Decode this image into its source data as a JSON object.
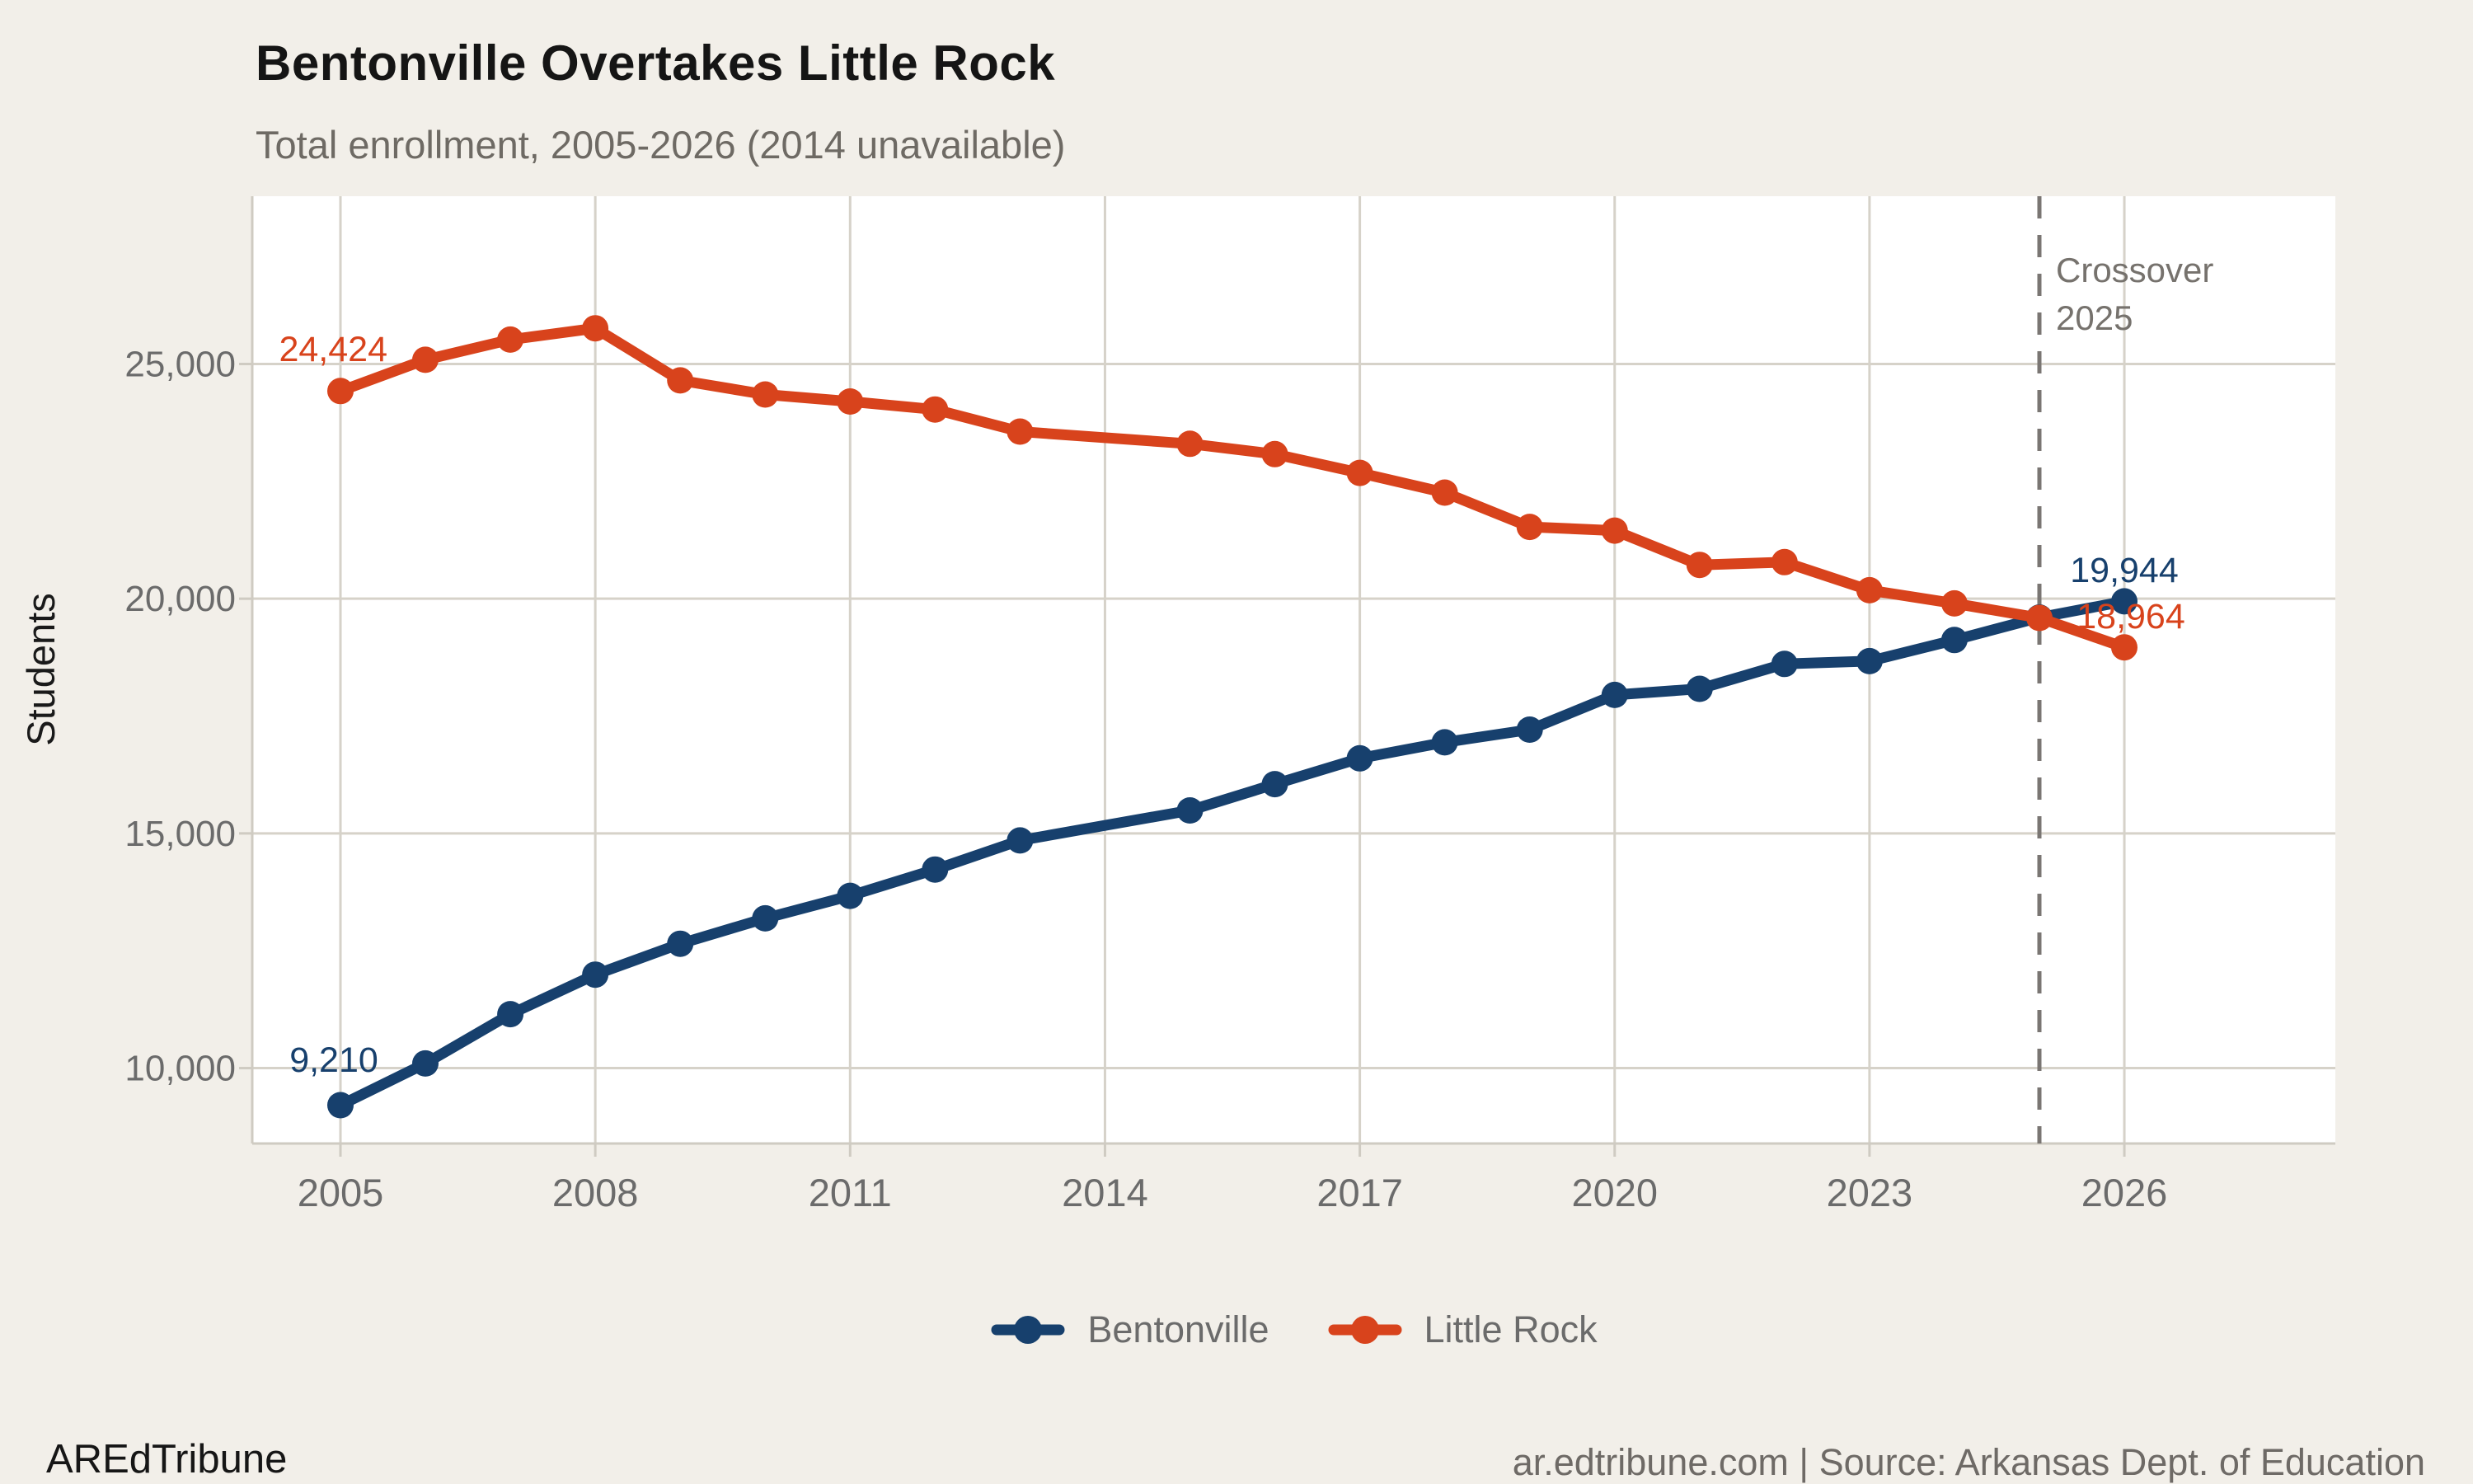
{
  "chart_data": {
    "type": "line",
    "title": "Bentonville Overtakes Little Rock",
    "subtitle": "Total enrollment, 2005-2026 (2014 unavailable)",
    "ylabel": "Students",
    "xlabel": "",
    "x": [
      2005,
      2006,
      2007,
      2008,
      2009,
      2010,
      2011,
      2012,
      2013,
      2014,
      2015,
      2016,
      2017,
      2018,
      2019,
      2020,
      2021,
      2022,
      2023,
      2024,
      2025,
      2026
    ],
    "xticks": [
      2005,
      2008,
      2011,
      2014,
      2017,
      2020,
      2023,
      2026
    ],
    "yticks": [
      10000,
      15000,
      20000,
      25000
    ],
    "ylim": [
      8400,
      28550
    ],
    "xlim": [
      2004,
      2029
    ],
    "grid": true,
    "legend_position": "bottom-center",
    "missing_year": 2014,
    "crossover_year": 2025,
    "series": [
      {
        "name": "Bentonville",
        "color": "#17406d",
        "values": [
          9210,
          10100,
          11150,
          11990,
          12650,
          13190,
          13670,
          14230,
          14850,
          null,
          15490,
          16050,
          16600,
          16940,
          17210,
          17950,
          18080,
          18610,
          18670,
          19120,
          19600,
          19944
        ]
      },
      {
        "name": "Little Rock",
        "color": "#d8431c",
        "values": [
          24424,
          25090,
          25520,
          25760,
          24650,
          24350,
          24200,
          24030,
          23560,
          null,
          23300,
          23080,
          22680,
          22260,
          21530,
          21450,
          20720,
          20780,
          20180,
          19900,
          19590,
          18964
        ]
      }
    ]
  },
  "annotations": {
    "littlerock_start": "24,424",
    "bentonville_start": "9,210",
    "bentonville_end": "19,944",
    "littlerock_end": "18,964",
    "crossover_line1": "Crossover",
    "crossover_line2": "2025"
  },
  "footer": {
    "brand": "AREdTribune",
    "source": "ar.edtribune.com | Source: Arkansas Dept. of Education"
  },
  "colors": {
    "background": "#f2efe9",
    "panel": "#ffffff",
    "grid": "#d6d2c9",
    "axis_line": "#cfcbc2",
    "dashed_line": "#7a7673",
    "tick_text": "#6b6b6b",
    "muted_text": "#6e6a64",
    "title_text": "#151515",
    "bentonville": "#17406d",
    "littlerock": "#d8431c"
  }
}
